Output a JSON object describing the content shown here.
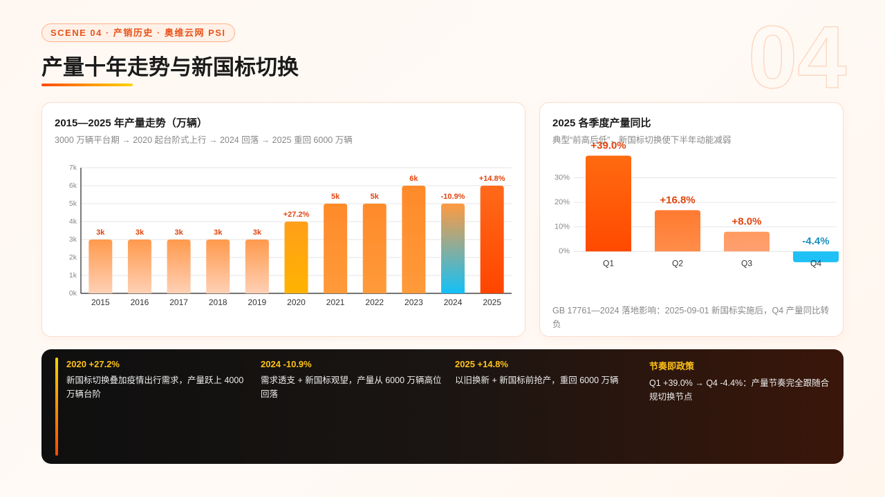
{
  "header": {
    "tag": "SCENE 04 · 产销历史 · 奥维云网 PSI",
    "title": "产量十年走势与新国标切换",
    "number": "04"
  },
  "chart_data": [
    {
      "type": "bar",
      "title": "2015—2025 年产量走势（万辆）",
      "subtitle": "3000 万辆平台期 → 2020 起台阶式上行 → 2024 回落 → 2025 重回 6000 万辆",
      "categories": [
        "2015",
        "2016",
        "2017",
        "2018",
        "2019",
        "2020",
        "2021",
        "2022",
        "2023",
        "2024",
        "2025"
      ],
      "values": [
        3000,
        3000,
        3000,
        3000,
        3000,
        4000,
        5000,
        5000,
        6000,
        5000,
        6000
      ],
      "value_labels": [
        "3k",
        "3k",
        "3k",
        "3k",
        "3k",
        null,
        "5k",
        "5k",
        "6k",
        null,
        null
      ],
      "change_labels": [
        null,
        null,
        null,
        null,
        null,
        "+27.2%",
        null,
        null,
        null,
        "-10.9%",
        "+14.8%"
      ],
      "colors": [
        [
          "#ff9a4d",
          "#ffd0b5"
        ],
        [
          "#ff9a4d",
          "#ffd0b5"
        ],
        [
          "#ff9a4d",
          "#ffd0b5"
        ],
        [
          "#ff9a4d",
          "#ffd0b5"
        ],
        [
          "#ff9a4d",
          "#ffd0b5"
        ],
        [
          "#ff9f1a",
          "#ffb300"
        ],
        [
          "#ff8a2a",
          "#ff9a3a"
        ],
        [
          "#ff8a2a",
          "#ff9a3a"
        ],
        [
          "#ff8a2a",
          "#ff9a3a"
        ],
        [
          "#ff9a40",
          "#12c0f8"
        ],
        [
          "#ff6a1a",
          "#ff4500"
        ]
      ],
      "label_color": "#e0440e",
      "ylim": [
        0,
        7000
      ],
      "yticks": [
        {
          "value": 0,
          "label": "0k"
        },
        {
          "value": 1000,
          "label": "1k"
        },
        {
          "value": 2000,
          "label": "2k"
        },
        {
          "value": 3000,
          "label": "3k"
        },
        {
          "value": 4000,
          "label": "4k"
        },
        {
          "value": 5000,
          "label": "5k"
        },
        {
          "value": 6000,
          "label": "6k"
        },
        {
          "value": 7000,
          "label": "7k"
        }
      ],
      "grid": true
    },
    {
      "type": "bar",
      "title": "2025 各季度产量同比",
      "subtitle": "典型“前高后低”，新国标切换使下半年动能减弱",
      "categories": [
        "Q1",
        "Q2",
        "Q3",
        "Q4"
      ],
      "values": [
        39.0,
        16.8,
        8.0,
        -4.4
      ],
      "value_labels": [
        "+39.0%",
        "+16.8%",
        "+8.0%",
        "-4.4%"
      ],
      "colors": [
        [
          "#ff6a10",
          "#ff4a00"
        ],
        [
          "#ff7a30",
          "#ff8d4a"
        ],
        [
          "#ff9a60",
          "#ffa070"
        ],
        [
          "#1ec0f5",
          "#1ec0f5"
        ]
      ],
      "label_colors": [
        "#e0440e",
        "#e0440e",
        "#e0440e",
        "#1a8fc0"
      ],
      "ylim": [
        -5,
        40
      ],
      "yticks": [
        {
          "value": 0,
          "label": "0%"
        },
        {
          "value": 10,
          "label": "10%"
        },
        {
          "value": 20,
          "label": "20%"
        },
        {
          "value": 30,
          "label": "30%"
        }
      ],
      "grid": true,
      "note": "GB 17761—2024 落地影响：2025-09-01 新国标实施后，Q4 产量同比转负"
    }
  ],
  "highlights": [
    {
      "title": "2020 +27.2%",
      "text": "新国标切换叠加疫情出行需求，产量跃上 4000 万辆台阶"
    },
    {
      "title": "2024 -10.9%",
      "text": "需求透支 + 新国标观望，产量从 6000 万辆高位回落"
    },
    {
      "title": "2025 +14.8%",
      "text": "以旧换新 + 新国标前抢产，重回 6000 万辆"
    },
    {
      "title": "节奏即政策",
      "text": "Q1 +39.0% → Q4 -4.4%：产量节奏完全跟随合规切换节点"
    }
  ]
}
